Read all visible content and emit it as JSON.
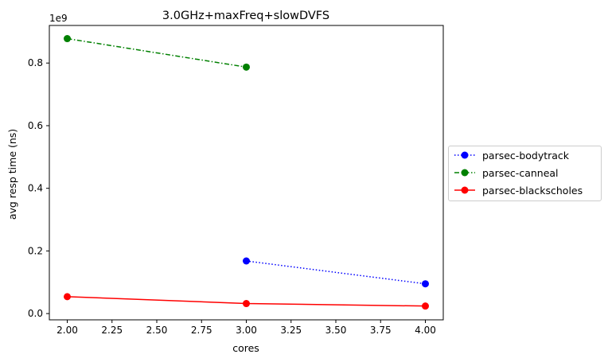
{
  "chart_data": {
    "type": "line",
    "title": "3.0GHz+maxFreq+slowDVFS",
    "xlabel": "cores",
    "ylabel": "avg resp time (ns)",
    "y_scale_label": "1e9",
    "xlim": [
      1.9,
      4.1
    ],
    "ylim": [
      -0.02,
      0.92
    ],
    "x_ticks": [
      2.0,
      2.25,
      2.5,
      2.75,
      3.0,
      3.25,
      3.5,
      3.75,
      4.0
    ],
    "x_tick_labels": [
      "2.00",
      "2.25",
      "2.50",
      "2.75",
      "3.00",
      "3.25",
      "3.50",
      "3.75",
      "4.00"
    ],
    "y_ticks": [
      0.0,
      0.2,
      0.4,
      0.6,
      0.8
    ],
    "y_tick_labels": [
      "0.0",
      "0.2",
      "0.4",
      "0.6",
      "0.8"
    ],
    "grid": false,
    "legend_placement": "center-right-outside",
    "series": [
      {
        "name": "parsec-bodytrack",
        "color": "#0000ff",
        "linestyle": "dotted",
        "x": [
          3.0,
          4.0
        ],
        "y": [
          0.168,
          0.095
        ]
      },
      {
        "name": "parsec-canneal",
        "color": "#008000",
        "linestyle": "dashdot",
        "x": [
          2.0,
          3.0
        ],
        "y": [
          0.878,
          0.787
        ]
      },
      {
        "name": "parsec-blackscholes",
        "color": "#ff0000",
        "linestyle": "solid",
        "x": [
          2.0,
          3.0,
          4.0
        ],
        "y": [
          0.054,
          0.032,
          0.024
        ]
      }
    ]
  }
}
